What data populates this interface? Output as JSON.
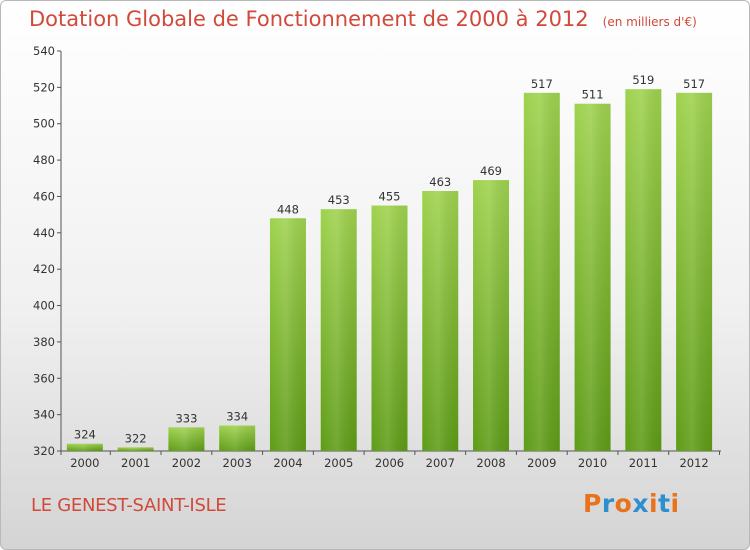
{
  "title": "Dotation Globale de Fonctionnement de 2000 à 2012",
  "subtitle": "(en milliers d'€)",
  "commune": "LE GENEST-SAINT-ISLE",
  "logo": {
    "text": "Proxiti",
    "colors": [
      "#e8731c",
      "#2e8fce",
      "#e8731c",
      "#2e8fce",
      "#e8731c",
      "#2e8fce",
      "#e8731c"
    ]
  },
  "colors": {
    "bar_top": "#9fd24e",
    "bar_bottom": "#5e9c17",
    "title": "#d2493a"
  },
  "chart_data": {
    "type": "bar",
    "categories": [
      "2000",
      "2001",
      "2002",
      "2003",
      "2004",
      "2005",
      "2006",
      "2007",
      "2008",
      "2009",
      "2010",
      "2011",
      "2012"
    ],
    "values": [
      324,
      322,
      333,
      334,
      448,
      453,
      455,
      463,
      469,
      517,
      511,
      519,
      517
    ],
    "ylim": [
      320,
      540
    ],
    "yticks": [
      320,
      340,
      360,
      380,
      400,
      420,
      440,
      460,
      480,
      500,
      520,
      540
    ],
    "grid": false,
    "data_labels": true
  }
}
